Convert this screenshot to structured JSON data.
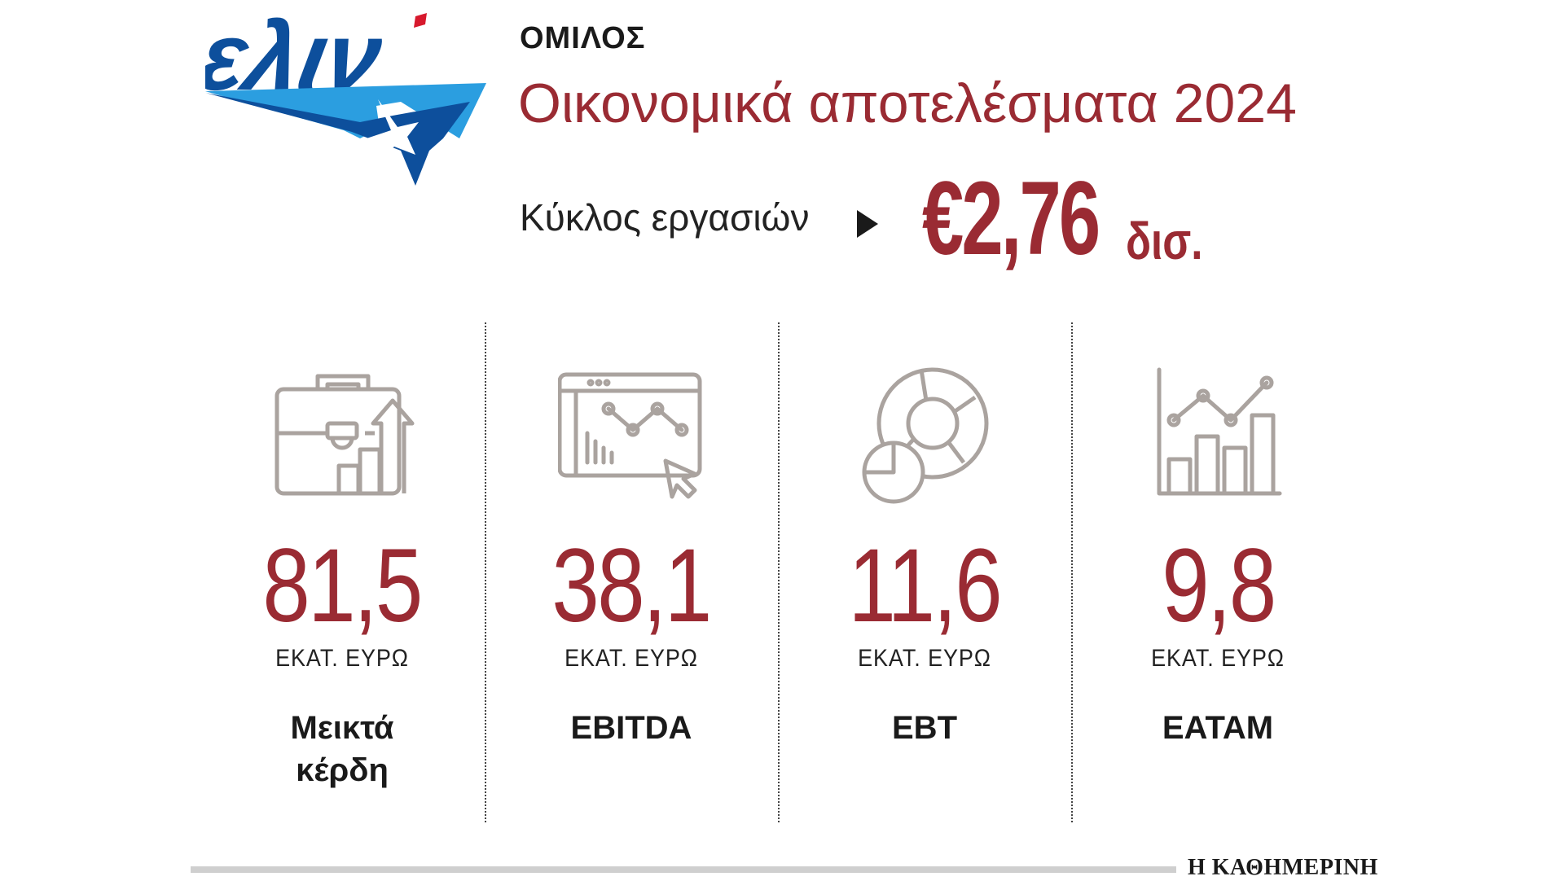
{
  "logo_text": "ελιν",
  "header": {
    "group_label": "ΟΜΙΛΟΣ",
    "title": "Οικονομικά αποτελέσματα 2024"
  },
  "turnover": {
    "label": "Κύκλος εργασιών",
    "value": "€2,76",
    "unit": "δισ."
  },
  "metrics": [
    {
      "value": "81,5",
      "unit": "ΕΚΑΤ. ΕΥΡΩ",
      "name": "Μεικτά κέρδη",
      "icon": "briefcase-growth-icon"
    },
    {
      "value": "38,1",
      "unit": "ΕΚΑΤ. ΕΥΡΩ",
      "name": "EBITDA",
      "icon": "dashboard-chart-icon"
    },
    {
      "value": "11,6",
      "unit": "ΕΚΑΤ. ΕΥΡΩ",
      "name": "EBT",
      "icon": "pie-chart-icon"
    },
    {
      "value": "9,8",
      "unit": "ΕΚΑΤ. ΕΥΡΩ",
      "name": "EATAM",
      "icon": "bar-line-chart-icon"
    }
  ],
  "footer": {
    "brand": "Η ΚΑΘΗΜΕΡΙΝΗ"
  },
  "colors": {
    "accent": "#9a2b33",
    "text": "#1a1a1a",
    "icon": "#aaa39f",
    "logo_dark": "#0d4f9c",
    "logo_light": "#2b9ee0",
    "logo_red": "#d7192d"
  }
}
